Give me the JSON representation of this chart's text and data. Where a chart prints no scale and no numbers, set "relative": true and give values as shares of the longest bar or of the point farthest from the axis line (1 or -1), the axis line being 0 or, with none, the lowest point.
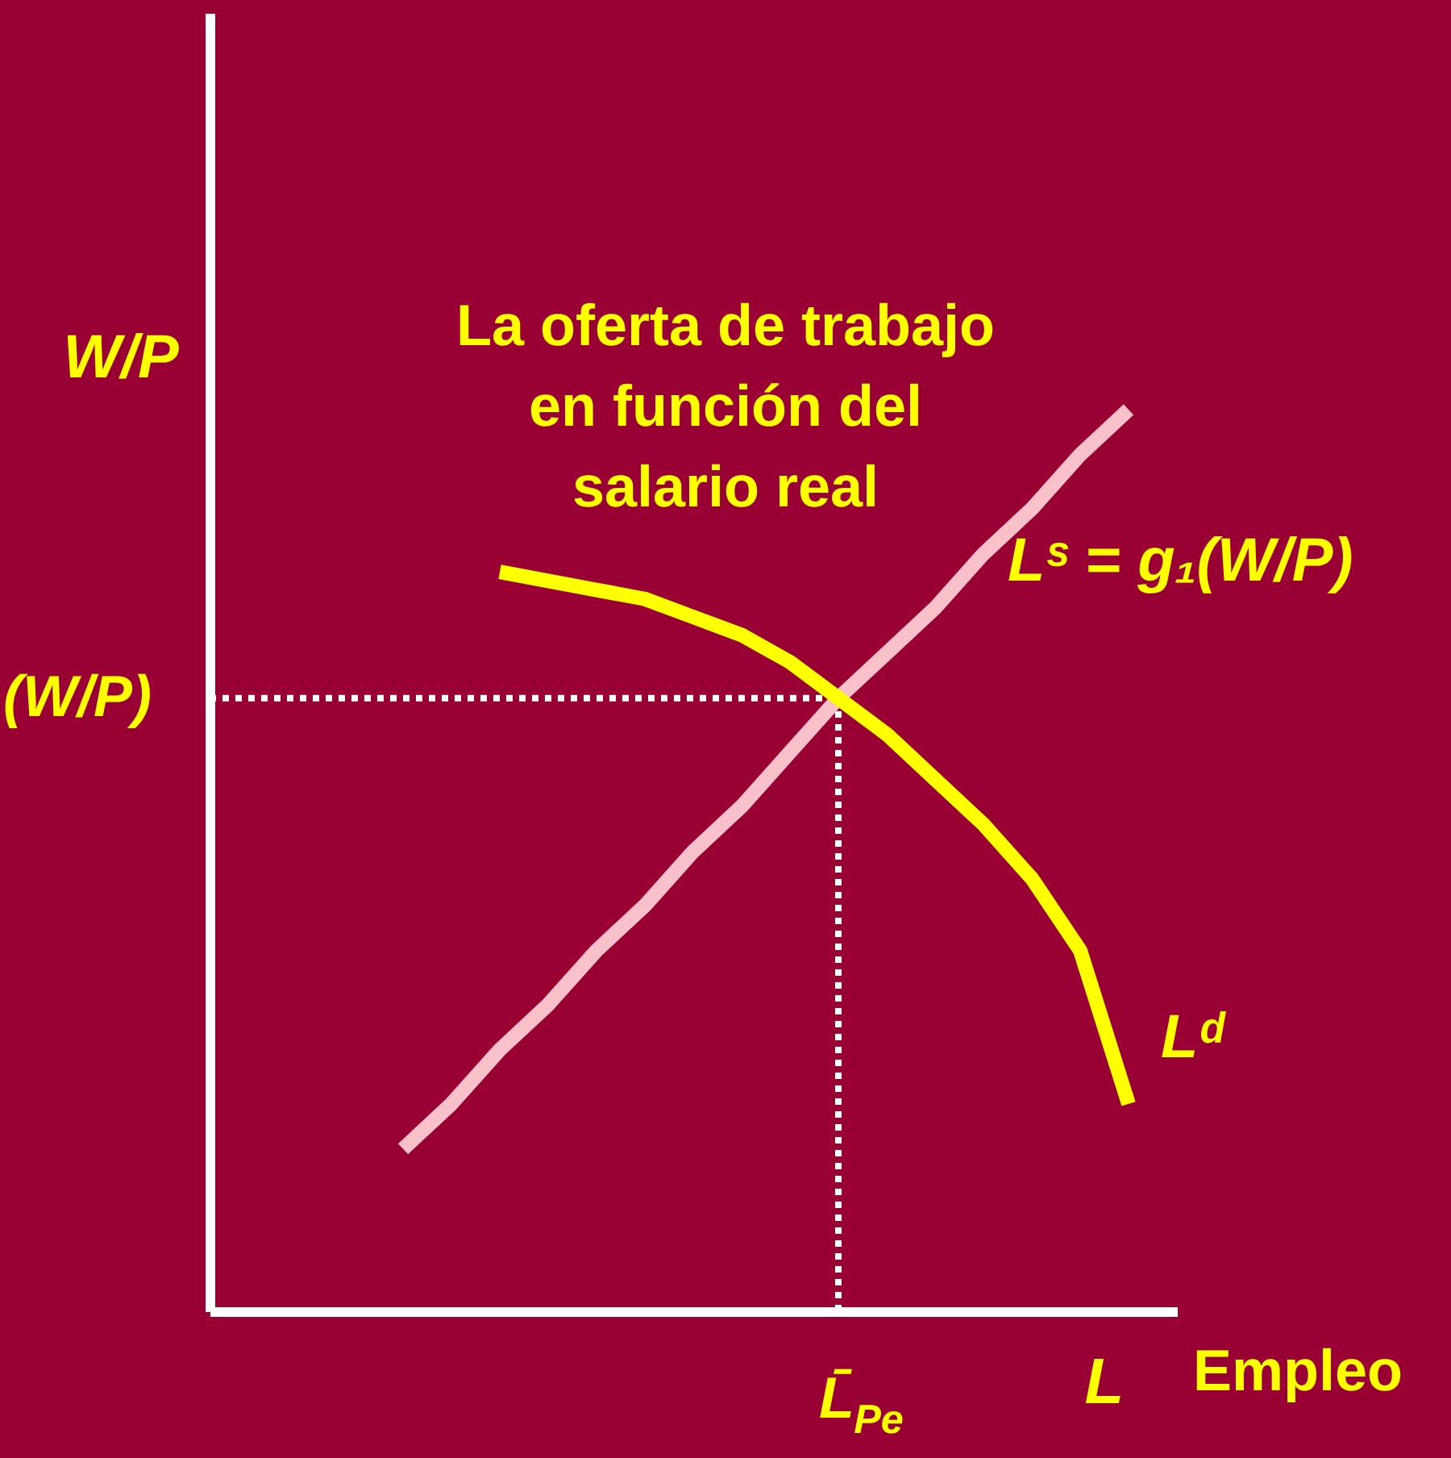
{
  "chart_data": {
    "type": "line",
    "relative": true,
    "title": "La oferta de trabajo en función del salario real",
    "xlabel": "L",
    "ylabel": "W/P",
    "annotations": [
      "Empleo",
      "L̄$_{Pe}$"
    ],
    "legend": false,
    "categories": [
      null,
      null,
      null,
      null,
      null,
      null,
      null,
      null,
      null,
      null,
      null,
      null,
      null,
      null,
      null,
      null,
      null,
      null,
      null,
      null,
      null
    ],
    "series": [
      {
        "name": "Lˢ = g₁(W/P)",
        "color": "#f8c0c8",
        "values": [
          null,
          null,
          null,
          null,
          0.18,
          0.23,
          0.29,
          0.34,
          0.4,
          0.45,
          0.51,
          0.56,
          0.62,
          0.68,
          0.73,
          0.78,
          0.84,
          0.89,
          0.95,
          1.0,
          null
        ]
      },
      {
        "name": "Lᵈ",
        "color": "#ffff00",
        "values": [
          null,
          null,
          null,
          null,
          null,
          null,
          0.82,
          0.81,
          0.8,
          0.79,
          0.77,
          0.75,
          0.72,
          0.68,
          0.64,
          0.59,
          0.54,
          0.48,
          0.4,
          0.23,
          null
        ]
      }
    ],
    "ref_lines": [
      {
        "axis": "y",
        "value": 0.68,
        "label": "(W/P)",
        "color": "#ffffff",
        "line_style": "dotted"
      }
    ]
  }
}
